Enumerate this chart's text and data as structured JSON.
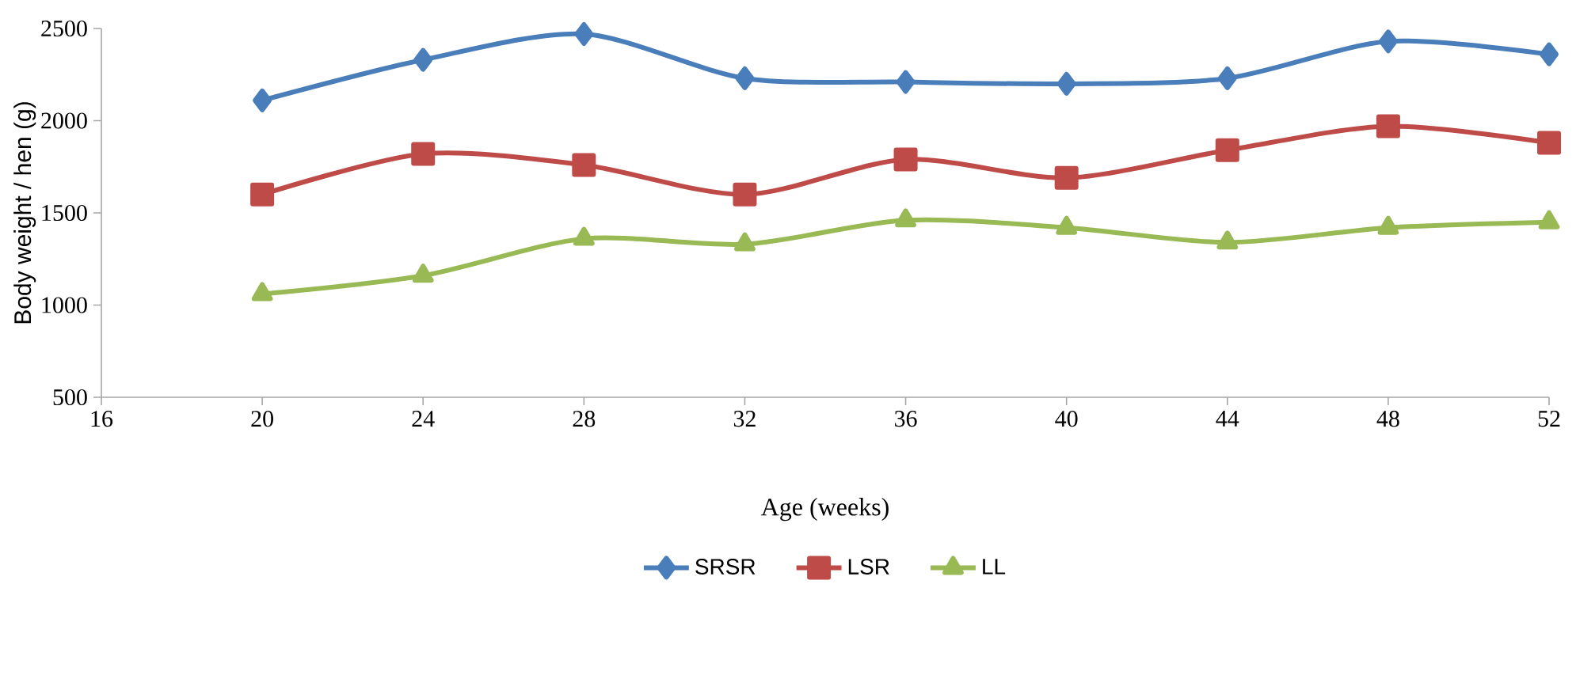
{
  "chart_data": {
    "type": "line",
    "xlabel": "Age (weeks)",
    "ylabel": "Body weight / hen (g)",
    "x": [
      20,
      24,
      28,
      32,
      36,
      40,
      44,
      48,
      52
    ],
    "series": [
      {
        "name": "SRSR",
        "color": "#4a7ebb",
        "marker": "diamond",
        "values": [
          2110,
          2330,
          2470,
          2230,
          2210,
          2200,
          2230,
          2430,
          2360
        ]
      },
      {
        "name": "LSR",
        "color": "#be4b48",
        "marker": "square",
        "values": [
          1600,
          1820,
          1760,
          1600,
          1790,
          1690,
          1840,
          1970,
          1880
        ]
      },
      {
        "name": "LL",
        "color": "#98b954",
        "marker": "triangle",
        "values": [
          1060,
          1160,
          1360,
          1330,
          1460,
          1420,
          1340,
          1420,
          1450
        ]
      }
    ],
    "xlim": [
      16,
      52
    ],
    "xticks": [
      16,
      20,
      24,
      28,
      32,
      36,
      40,
      44,
      48,
      52
    ],
    "ylim": [
      500,
      2500
    ],
    "yticks": [
      500,
      1000,
      1500,
      2000,
      2500
    ],
    "grid": false,
    "legend": "bottom",
    "line_style": "solid"
  }
}
